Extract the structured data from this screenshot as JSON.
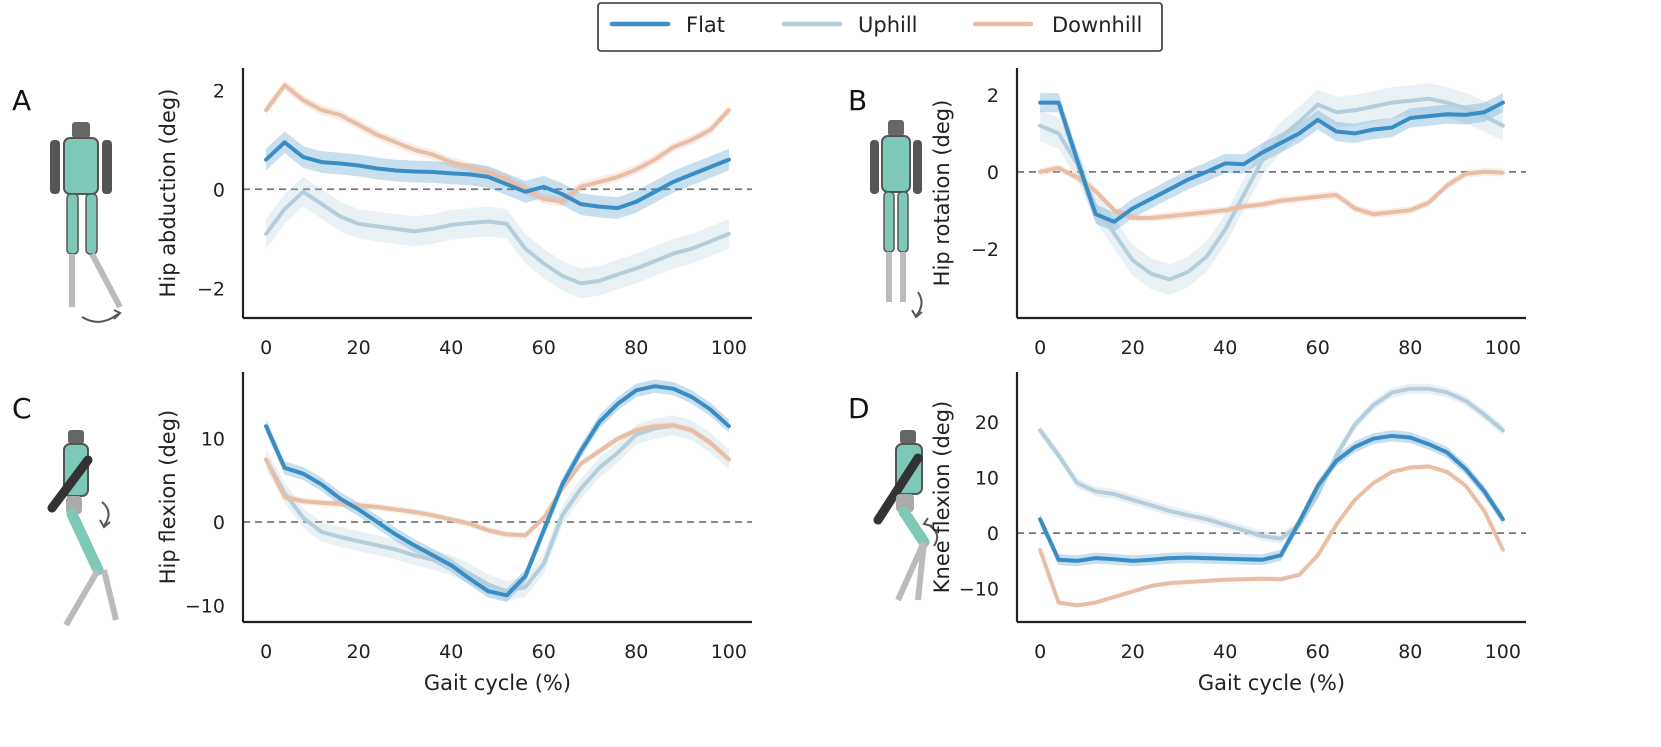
{
  "colors": {
    "Flat": "#3a8dc4",
    "Uphill": "#b4cedc",
    "Downhill": "#e9bea5",
    "robot_body": "#7ec8b8",
    "robot_dark": "#555555"
  },
  "legend": {
    "items": [
      "Flat",
      "Uphill",
      "Downhill"
    ],
    "position": "top-center"
  },
  "figure_icons": [
    "robot-hip-abduction-icon",
    "robot-hip-rotation-icon",
    "robot-hip-flexion-icon",
    "robot-knee-flexion-icon"
  ],
  "chart_data": [
    {
      "panel": "A",
      "type": "line",
      "ylabel": "Hip abduction (deg)",
      "xlabel": "",
      "xlim": [
        -5,
        105
      ],
      "ylim": [
        -2.6,
        2.45
      ],
      "xticks": [
        0,
        20,
        40,
        60,
        80,
        100
      ],
      "yticks": [
        -2,
        0,
        2
      ],
      "ytick_labels": [
        "−2",
        "0",
        "2"
      ],
      "x": [
        0,
        4,
        8,
        12,
        16,
        20,
        24,
        28,
        32,
        36,
        40,
        44,
        48,
        52,
        56,
        60,
        64,
        68,
        72,
        76,
        80,
        84,
        88,
        92,
        96,
        100
      ],
      "series": [
        {
          "name": "Flat",
          "values": [
            0.6,
            0.95,
            0.65,
            0.55,
            0.52,
            0.48,
            0.42,
            0.38,
            0.36,
            0.35,
            0.32,
            0.3,
            0.25,
            0.1,
            -0.05,
            0.05,
            -0.1,
            -0.3,
            -0.35,
            -0.38,
            -0.25,
            -0.05,
            0.15,
            0.3,
            0.45,
            0.6
          ],
          "band": 0.22
        },
        {
          "name": "Uphill",
          "values": [
            -0.9,
            -0.4,
            -0.05,
            -0.3,
            -0.55,
            -0.7,
            -0.75,
            -0.8,
            -0.85,
            -0.8,
            -0.72,
            -0.68,
            -0.65,
            -0.7,
            -1.2,
            -1.5,
            -1.75,
            -1.9,
            -1.85,
            -1.72,
            -1.6,
            -1.45,
            -1.3,
            -1.2,
            -1.05,
            -0.9
          ],
          "band": 0.3
        },
        {
          "name": "Downhill",
          "values": [
            1.6,
            2.1,
            1.8,
            1.6,
            1.5,
            1.3,
            1.1,
            0.95,
            0.8,
            0.7,
            0.55,
            0.45,
            0.35,
            0.2,
            0.0,
            -0.2,
            -0.25,
            0.05,
            0.15,
            0.25,
            0.4,
            0.6,
            0.85,
            1.0,
            1.2,
            1.6
          ],
          "band": 0.1
        }
      ]
    },
    {
      "panel": "B",
      "type": "line",
      "ylabel": "Hip rotation (deg)",
      "xlabel": "",
      "xlim": [
        -5,
        105
      ],
      "ylim": [
        -3.8,
        2.7
      ],
      "xticks": [
        0,
        20,
        40,
        60,
        80,
        100
      ],
      "yticks": [
        -2,
        0,
        2
      ],
      "ytick_labels": [
        "−2",
        "0",
        "2"
      ],
      "x": [
        0,
        4,
        8,
        12,
        16,
        20,
        24,
        28,
        32,
        36,
        40,
        44,
        48,
        52,
        56,
        60,
        64,
        68,
        72,
        76,
        80,
        84,
        88,
        92,
        96,
        100
      ],
      "series": [
        {
          "name": "Flat",
          "values": [
            1.8,
            1.8,
            0.3,
            -1.1,
            -1.3,
            -0.95,
            -0.7,
            -0.45,
            -0.2,
            0.0,
            0.22,
            0.2,
            0.5,
            0.75,
            1.0,
            1.35,
            1.05,
            1.0,
            1.1,
            1.15,
            1.4,
            1.45,
            1.5,
            1.48,
            1.55,
            1.8
          ],
          "band": 0.25
        },
        {
          "name": "Uphill",
          "values": [
            1.2,
            1.0,
            0.2,
            -0.9,
            -1.6,
            -2.3,
            -2.65,
            -2.8,
            -2.6,
            -2.2,
            -1.5,
            -0.6,
            0.3,
            0.9,
            1.3,
            1.75,
            1.55,
            1.6,
            1.7,
            1.8,
            1.85,
            1.9,
            1.8,
            1.65,
            1.45,
            1.2
          ],
          "band": 0.4
        },
        {
          "name": "Downhill",
          "values": [
            0.0,
            0.1,
            -0.15,
            -0.5,
            -1.0,
            -1.2,
            -1.2,
            -1.15,
            -1.1,
            -1.05,
            -1.0,
            -0.9,
            -0.85,
            -0.75,
            -0.7,
            -0.65,
            -0.6,
            -0.95,
            -1.1,
            -1.05,
            -1.0,
            -0.8,
            -0.35,
            -0.05,
            0.0,
            -0.02
          ],
          "band": 0.1
        }
      ]
    },
    {
      "panel": "C",
      "type": "line",
      "ylabel": "Hip flexion (deg)",
      "xlabel": "Gait cycle (%)",
      "xlim": [
        -5,
        105
      ],
      "ylim": [
        -12,
        18
      ],
      "xticks": [
        0,
        20,
        40,
        60,
        80,
        100
      ],
      "yticks": [
        -10,
        0,
        10
      ],
      "ytick_labels": [
        "−10",
        "0",
        "10"
      ],
      "x": [
        0,
        4,
        8,
        12,
        16,
        20,
        24,
        28,
        32,
        36,
        40,
        44,
        48,
        52,
        56,
        60,
        64,
        68,
        72,
        76,
        80,
        84,
        88,
        92,
        96,
        100
      ],
      "series": [
        {
          "name": "Flat",
          "values": [
            11.5,
            6.5,
            5.8,
            4.5,
            2.8,
            1.5,
            0.0,
            -1.5,
            -2.8,
            -4.0,
            -5.2,
            -6.8,
            -8.3,
            -8.8,
            -6.5,
            -1.0,
            4.5,
            8.5,
            12.0,
            14.2,
            15.8,
            16.3,
            16.0,
            15.0,
            13.5,
            11.5
          ],
          "band": 0.8
        },
        {
          "name": "Uphill",
          "values": [
            7.5,
            3.5,
            0.5,
            -1.2,
            -1.8,
            -2.3,
            -2.8,
            -3.3,
            -4.0,
            -4.5,
            -5.2,
            -6.2,
            -7.5,
            -8.3,
            -7.8,
            -5.0,
            0.8,
            4.0,
            6.5,
            8.3,
            10.5,
            11.2,
            11.6,
            11.0,
            9.5,
            7.5
          ],
          "band": 1.2
        },
        {
          "name": "Downhill",
          "values": [
            7.5,
            3.0,
            2.5,
            2.3,
            2.2,
            2.0,
            1.8,
            1.5,
            1.2,
            0.8,
            0.3,
            -0.2,
            -1.0,
            -1.5,
            -1.6,
            0.5,
            4.0,
            7.0,
            8.5,
            10.0,
            11.0,
            11.5,
            11.6,
            11.0,
            9.5,
            7.5
          ],
          "band": 0.4
        }
      ]
    },
    {
      "panel": "D",
      "type": "line",
      "ylabel": "Knee flexion (deg)",
      "xlabel": "Gait cycle (%)",
      "xlim": [
        -5,
        105
      ],
      "ylim": [
        -16,
        29
      ],
      "xticks": [
        0,
        20,
        40,
        60,
        80,
        100
      ],
      "yticks": [
        -10,
        0,
        10,
        20
      ],
      "ytick_labels": [
        "−10",
        "0",
        "10",
        "20"
      ],
      "x": [
        0,
        4,
        8,
        12,
        16,
        20,
        24,
        28,
        32,
        36,
        40,
        44,
        48,
        52,
        56,
        60,
        64,
        68,
        72,
        76,
        80,
        84,
        88,
        92,
        96,
        100
      ],
      "series": [
        {
          "name": "Flat",
          "values": [
            2.5,
            -4.8,
            -5.0,
            -4.5,
            -4.7,
            -5.0,
            -4.8,
            -4.5,
            -4.4,
            -4.5,
            -4.6,
            -4.7,
            -4.8,
            -4.0,
            2.0,
            8.5,
            13.0,
            15.5,
            17.0,
            17.5,
            17.2,
            16.0,
            14.5,
            11.5,
            7.5,
            2.5
          ],
          "band": 1.0
        },
        {
          "name": "Uphill",
          "values": [
            18.5,
            14.0,
            9.0,
            7.5,
            7.0,
            6.0,
            5.0,
            4.0,
            3.2,
            2.5,
            1.5,
            0.5,
            -0.5,
            -1.0,
            1.5,
            7.0,
            14.0,
            19.5,
            23.0,
            25.3,
            26.0,
            26.0,
            25.3,
            23.8,
            21.3,
            18.5
          ],
          "band": 0.9
        },
        {
          "name": "Downhill",
          "values": [
            -3.0,
            -12.5,
            -13.0,
            -12.5,
            -11.5,
            -10.5,
            -9.5,
            -9.0,
            -8.8,
            -8.6,
            -8.4,
            -8.3,
            -8.2,
            -8.3,
            -7.5,
            -4.0,
            1.5,
            6.0,
            9.0,
            11.0,
            11.8,
            12.0,
            11.0,
            8.5,
            4.0,
            -3.0
          ],
          "band": 0.4
        }
      ]
    }
  ],
  "panel_letters": [
    "A",
    "B",
    "C",
    "D"
  ]
}
